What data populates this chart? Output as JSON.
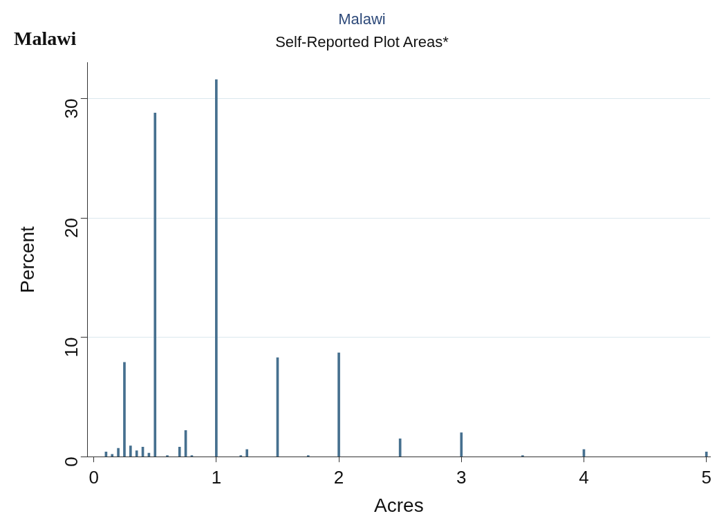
{
  "chart_data": {
    "type": "bar",
    "title": "Malawi",
    "subtitle": "Self-Reported Plot Areas*",
    "xlabel": "Acres",
    "ylabel": "Percent",
    "annotations": [
      "Malawi"
    ],
    "x": [
      0.1,
      0.15,
      0.2,
      0.25,
      0.3,
      0.35,
      0.4,
      0.45,
      0.5,
      0.6,
      0.7,
      0.75,
      0.8,
      1,
      1.2,
      1.25,
      1.5,
      1.75,
      2,
      2.5,
      3,
      3.5,
      4,
      5
    ],
    "values": [
      0.4,
      0.2,
      0.7,
      7.9,
      0.9,
      0.5,
      0.8,
      0.3,
      28.8,
      0.1,
      0.8,
      2.2,
      0.1,
      31.6,
      0.1,
      0.6,
      8.3,
      0.1,
      8.7,
      1.5,
      2.0,
      0.1,
      0.6,
      0.4
    ],
    "color": "#46708f",
    "xlim": [
      -0.05,
      5.03
    ],
    "xticks": [
      0,
      1,
      2,
      3,
      4,
      5
    ],
    "ylim": [
      0,
      33
    ],
    "yticks": [
      0,
      10,
      20,
      30
    ],
    "grid": "y"
  }
}
